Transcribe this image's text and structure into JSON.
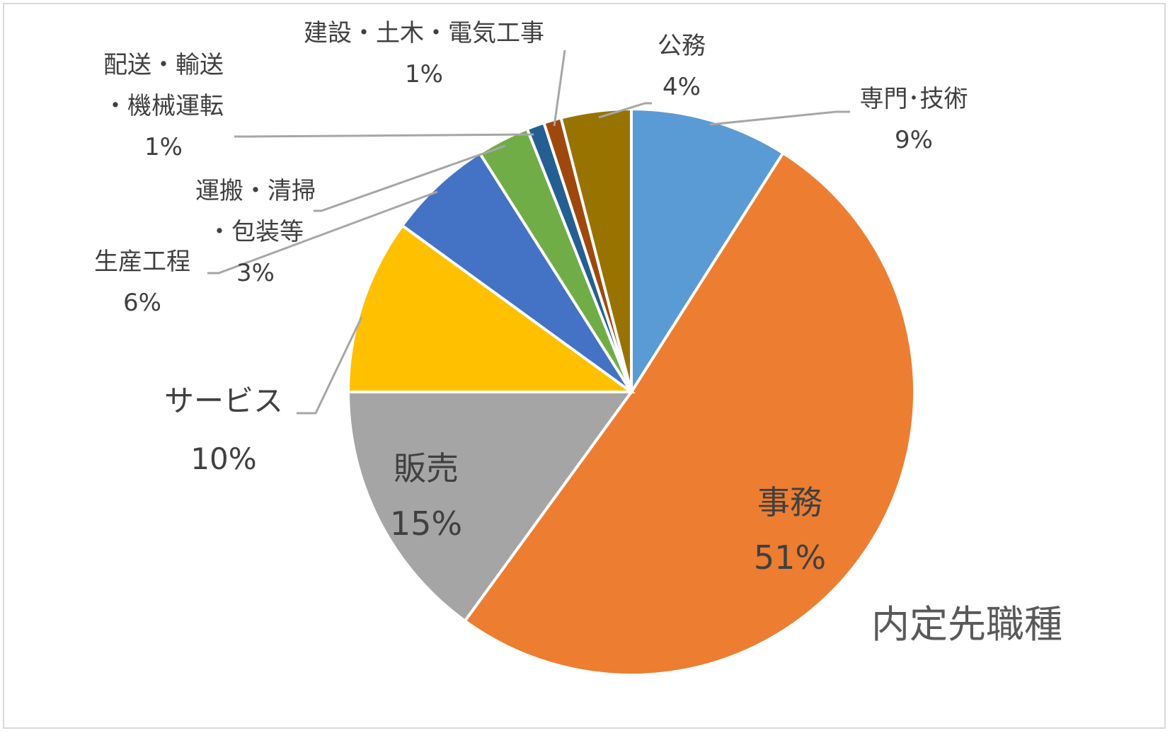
{
  "chart_data": {
    "type": "pie",
    "title": "内定先職種",
    "start_angle_deg": 0,
    "direction": "clockwise",
    "slices": [
      {
        "name": "専門･技術",
        "label_lines": [
          "専門･技術"
        ],
        "value": 9,
        "value_label": "9%",
        "color": "#5B9BD5"
      },
      {
        "name": "事務",
        "label_lines": [
          "事務"
        ],
        "value": 51,
        "value_label": "51%",
        "color": "#ED7D31"
      },
      {
        "name": "販売",
        "label_lines": [
          "販売"
        ],
        "value": 15,
        "value_label": "15%",
        "color": "#A5A5A5"
      },
      {
        "name": "サービス",
        "label_lines": [
          "サービス"
        ],
        "value": 10,
        "value_label": "10%",
        "color": "#FFC000"
      },
      {
        "name": "生産工程",
        "label_lines": [
          "生産工程"
        ],
        "value": 6,
        "value_label": "6%",
        "color": "#4472C4"
      },
      {
        "name": "運搬・清掃・包装等",
        "label_lines": [
          "運搬・清掃",
          "・包装等"
        ],
        "value": 3,
        "value_label": "3%",
        "color": "#70AD47"
      },
      {
        "name": "配送・輸送・機械運転",
        "label_lines": [
          "配送・輸送",
          "・機械運転"
        ],
        "value": 1,
        "value_label": "1%",
        "color": "#255E91"
      },
      {
        "name": "建設・土木・電気工事",
        "label_lines": [
          "建設・土木・電気工事"
        ],
        "value": 1,
        "value_label": "1%",
        "color": "#9E480E"
      },
      {
        "name": "公務",
        "label_lines": [
          "公務"
        ],
        "value": 4,
        "value_label": "4%",
        "color": "#997300"
      }
    ]
  }
}
